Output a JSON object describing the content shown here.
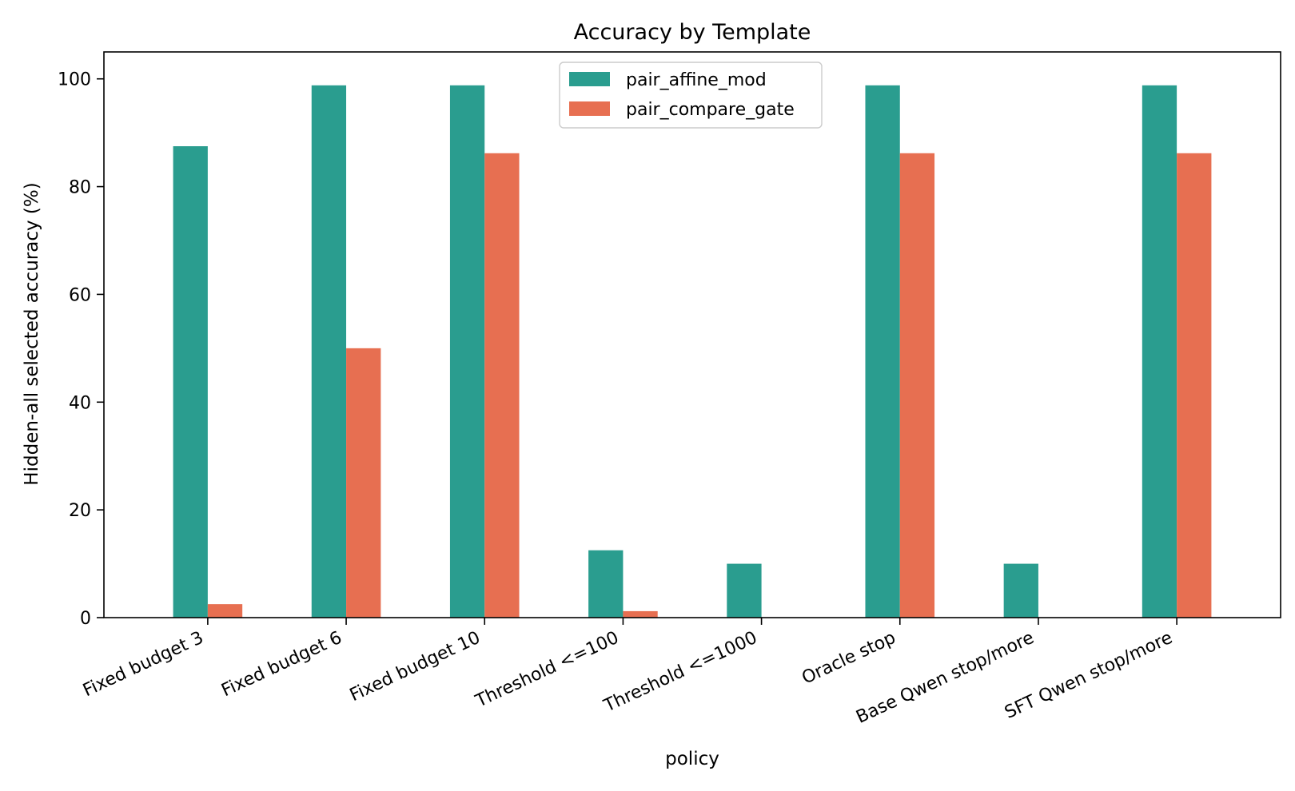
{
  "chart_data": {
    "type": "bar",
    "title": "Accuracy by Template",
    "xlabel": "policy",
    "ylabel": "Hidden-all selected accuracy (%)",
    "ylim": [
      0,
      105
    ],
    "yticks": [
      0,
      20,
      40,
      60,
      80,
      100
    ],
    "grid": false,
    "legend_position": "top-center",
    "categories": [
      "Fixed budget 3",
      "Fixed budget 6",
      "Fixed budget 10",
      "Threshold <=100",
      "Threshold <=1000",
      "Oracle stop",
      "Base Qwen stop/more",
      "SFT Qwen stop/more"
    ],
    "series": [
      {
        "name": "pair_affine_mod",
        "color": "#2a9d8f",
        "values": [
          87.5,
          98.8,
          98.8,
          12.5,
          10.0,
          98.8,
          10.0,
          98.8
        ]
      },
      {
        "name": "pair_compare_gate",
        "color": "#e76f51",
        "values": [
          2.5,
          50.0,
          86.2,
          1.2,
          0.0,
          86.2,
          0.0,
          86.2
        ]
      }
    ]
  }
}
